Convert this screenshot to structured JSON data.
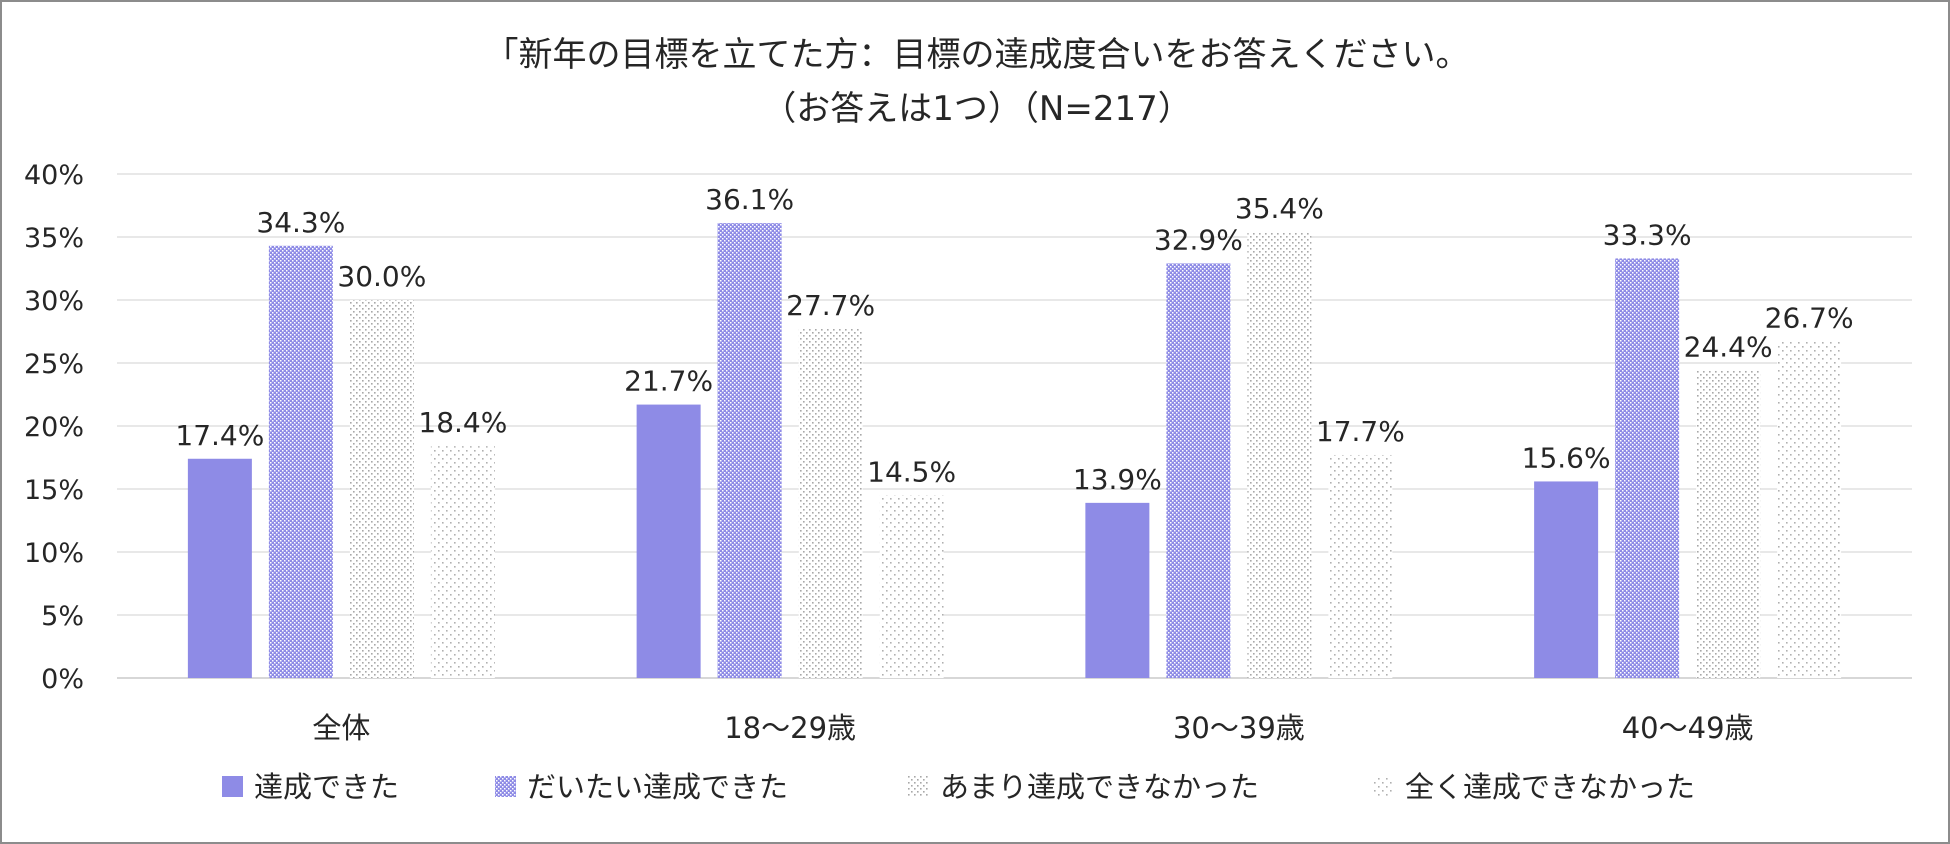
{
  "chart_data": {
    "type": "bar",
    "title": "「新年の目標を立てた方：目標の達成度合いをお答えください。",
    "subtitle": "（お答えは1つ）（N=217）",
    "xlabel": "",
    "ylabel": "",
    "ylim": [
      0,
      40
    ],
    "y_ticks": [
      "0%",
      "5%",
      "10%",
      "15%",
      "20%",
      "25%",
      "30%",
      "35%",
      "40%"
    ],
    "y_tick_values": [
      0,
      5,
      10,
      15,
      20,
      25,
      30,
      35,
      40
    ],
    "grid": true,
    "legend_position": "bottom",
    "categories": [
      "全体",
      "18〜29歳",
      "30〜39歳",
      "40〜49歳"
    ],
    "series": [
      {
        "name": "達成できた",
        "values": [
          17.4,
          21.7,
          13.9,
          15.6
        ],
        "labels": [
          "17.4%",
          "21.7%",
          "13.9%",
          "15.6%"
        ],
        "color": "#8e8be6",
        "fill": "solid"
      },
      {
        "name": "だいたい達成できた",
        "values": [
          34.3,
          36.1,
          32.9,
          33.3
        ],
        "labels": [
          "34.3%",
          "36.1%",
          "32.9%",
          "33.3%"
        ],
        "color": "#8e8be6",
        "fill": "dense-dots"
      },
      {
        "name": "あまり達成できなかった",
        "values": [
          30.0,
          27.7,
          35.4,
          24.4
        ],
        "labels": [
          "30.0%",
          "27.7%",
          "35.4%",
          "24.4%"
        ],
        "color": "#b4b4b4",
        "fill": "medium-dots"
      },
      {
        "name": "全く達成できなかった",
        "values": [
          18.4,
          14.5,
          17.7,
          26.7
        ],
        "labels": [
          "18.4%",
          "14.5%",
          "17.7%",
          "26.7%"
        ],
        "color": "#c0c0c0",
        "fill": "sparse-dots"
      }
    ]
  }
}
